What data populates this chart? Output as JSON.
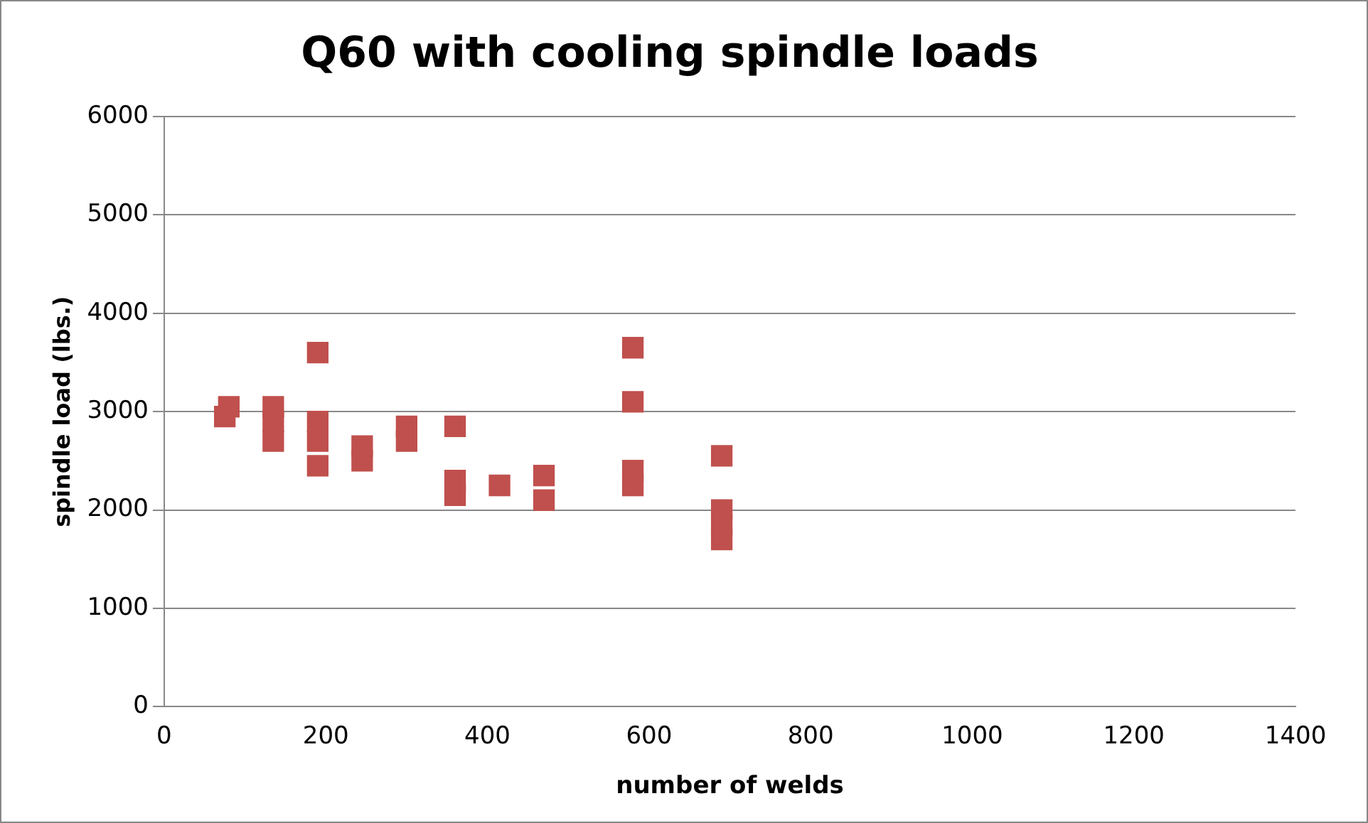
{
  "chart_data": {
    "type": "scatter",
    "title": "Q60 with cooling spindle loads",
    "xlabel": "number of welds",
    "ylabel": "spindle load (lbs.)",
    "x": [
      75,
      80,
      135,
      135,
      135,
      190,
      190,
      190,
      190,
      245,
      245,
      300,
      300,
      360,
      360,
      360,
      415,
      470,
      470,
      580,
      580,
      580,
      580,
      690,
      690,
      690,
      690
    ],
    "values": [
      2950,
      3050,
      2700,
      2900,
      3050,
      3600,
      2450,
      2700,
      2900,
      2500,
      2650,
      2700,
      2850,
      2850,
      2150,
      2300,
      2250,
      2100,
      2350,
      3650,
      3100,
      2250,
      2400,
      2550,
      1700,
      1850,
      2000
    ],
    "color": "#c0504d",
    "marker": "square",
    "xlim": [
      0,
      1400
    ],
    "xticks": [
      0,
      200,
      400,
      600,
      800,
      1000,
      1200,
      1400
    ],
    "ylim": [
      0,
      6000
    ],
    "yticks": [
      0,
      1000,
      2000,
      3000,
      4000,
      5000,
      6000
    ],
    "grid": "y",
    "legend": false
  }
}
